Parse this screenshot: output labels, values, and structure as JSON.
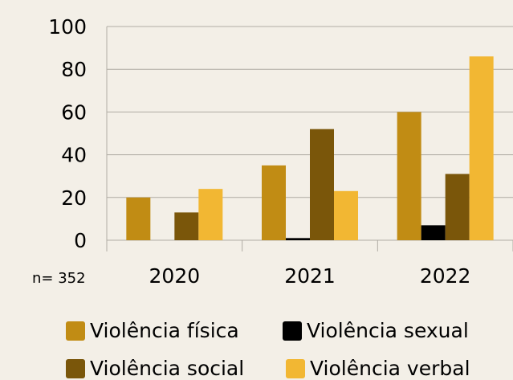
{
  "chart_data": {
    "type": "bar",
    "categories": [
      "2020",
      "2021",
      "2022"
    ],
    "series": [
      {
        "name": "Violência física",
        "color": "#c18c14",
        "values": [
          20,
          35,
          60
        ]
      },
      {
        "name": "Violência sexual",
        "color": "#000000",
        "values": [
          0,
          1,
          7
        ]
      },
      {
        "name": "Violência social",
        "color": "#7a560a",
        "values": [
          13,
          52,
          31
        ]
      },
      {
        "name": "Violência verbal",
        "color": "#f2b733",
        "values": [
          24,
          23,
          86
        ]
      }
    ],
    "yticks": [
      0,
      20,
      40,
      60,
      80,
      100
    ],
    "ylim": [
      0,
      100
    ],
    "grid": true,
    "legend_position": "bottom"
  },
  "note": "n= 352"
}
